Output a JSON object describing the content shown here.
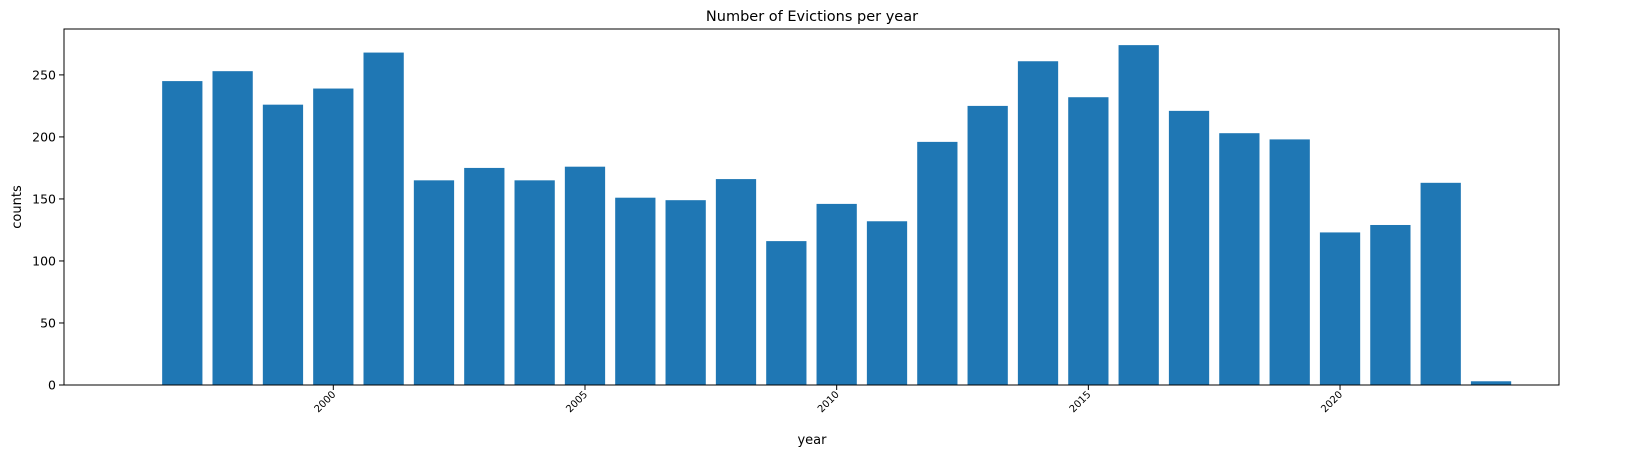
{
  "chart_data": {
    "type": "bar",
    "title": "Number of Evictions per year",
    "xlabel": "year",
    "ylabel": "counts",
    "bar_color": "#1f77b4",
    "categories": [
      1997,
      1998,
      1999,
      2000,
      2001,
      2002,
      2003,
      2004,
      2005,
      2006,
      2007,
      2008,
      2009,
      2010,
      2011,
      2012,
      2013,
      2014,
      2015,
      2016,
      2017,
      2018,
      2019,
      2020,
      2021,
      2022,
      2023
    ],
    "values": [
      245,
      253,
      226,
      239,
      268,
      165,
      175,
      165,
      176,
      151,
      149,
      166,
      116,
      146,
      132,
      196,
      225,
      261,
      232,
      274,
      221,
      203,
      198,
      123,
      129,
      163,
      3
    ],
    "xlim": [
      1994.65,
      2024.35
    ],
    "ylim": [
      0,
      287
    ],
    "xticks": [
      2000,
      2005,
      2010,
      2015,
      2020
    ],
    "xtick_labels": [
      "2000",
      "2005",
      "2010",
      "2015",
      "2020"
    ],
    "yticks": [
      0,
      50,
      100,
      150,
      200,
      250
    ],
    "ytick_labels": [
      "0",
      "50",
      "100",
      "150",
      "200",
      "250"
    ],
    "grid": false,
    "legend": false
  }
}
